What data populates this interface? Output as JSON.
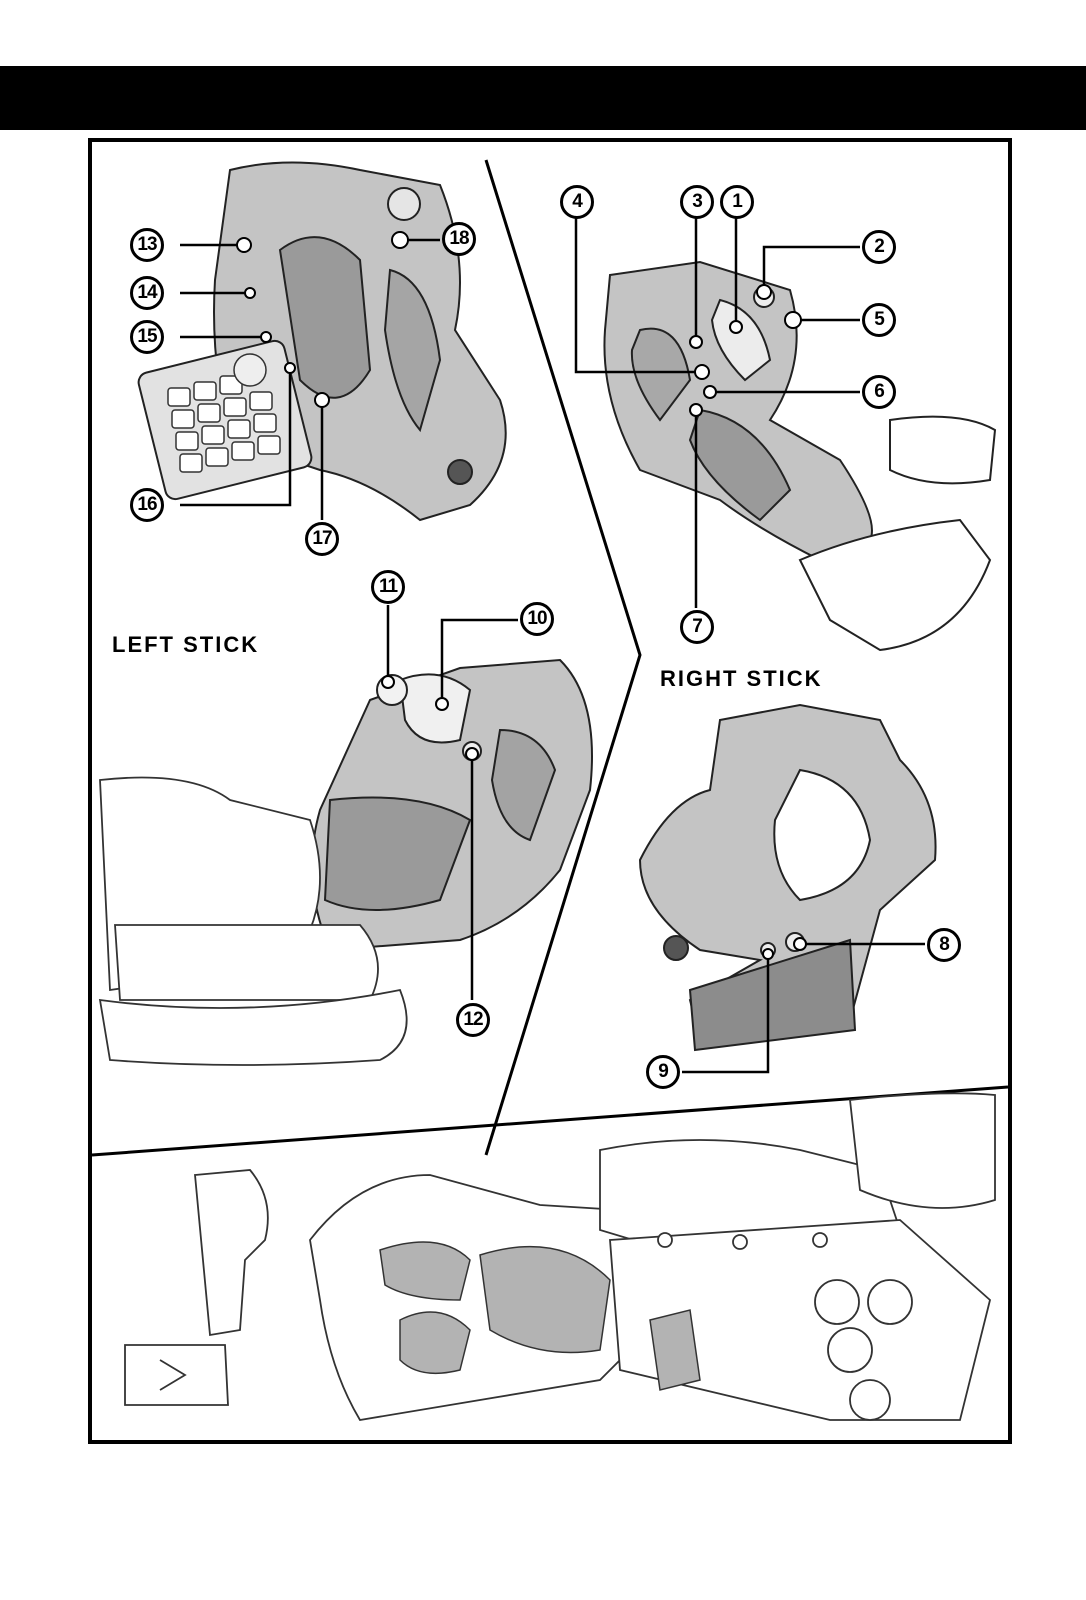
{
  "labels": {
    "left_stick": "LEFT STICK",
    "right_stick": "RIGHT STICK"
  },
  "callouts": {
    "c1": "1",
    "c2": "2",
    "c3": "3",
    "c4": "4",
    "c5": "5",
    "c6": "6",
    "c7": "7",
    "c8": "8",
    "c9": "9",
    "c10": "10",
    "c11": "11",
    "c12": "12",
    "c13": "13",
    "c14": "14",
    "c15": "15",
    "c16": "16",
    "c17": "17",
    "c18": "18"
  },
  "colors": {
    "ink": "#000000",
    "tone": "#b9b9b9",
    "tone_dark": "#8c8c8c",
    "paper": "#ffffff"
  }
}
